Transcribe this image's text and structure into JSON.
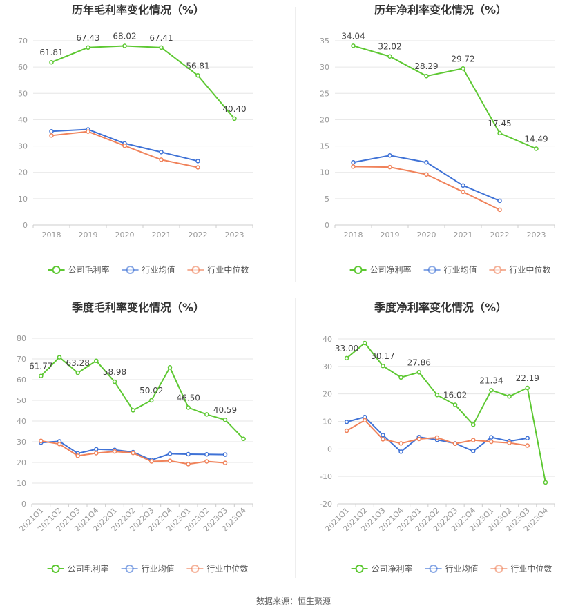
{
  "source": {
    "label": "数据来源：",
    "name": "恒生聚源"
  },
  "legend_labels": {
    "gross": "公司毛利率",
    "net": "公司净利率",
    "avg": "行业均值",
    "median": "行业中位数"
  },
  "colors": {
    "company": "#5dc832",
    "average": "#3f72d6",
    "median": "#f0825a",
    "grid": "#e6e6e6",
    "axis": "#999999"
  },
  "chart_data": [
    {
      "type": "line",
      "title": "历年毛利率变化情况（%）",
      "categories": [
        "2018",
        "2019",
        "2020",
        "2021",
        "2022",
        "2023"
      ],
      "ylim": [
        0,
        70
      ],
      "yticks": [
        "0",
        "10",
        "20",
        "30",
        "40",
        "50",
        "60",
        "70"
      ],
      "grid": true,
      "legend_position": "bottom",
      "series": [
        {
          "name": "公司毛利率",
          "values": [
            61.81,
            67.43,
            68.02,
            67.41,
            56.81,
            40.4
          ],
          "labels": [
            "61.81",
            "67.43",
            "68.02",
            "67.41",
            "56.81",
            "40.40"
          ]
        },
        {
          "name": "行业均值",
          "values": [
            35.6,
            36.3,
            31.0,
            27.7,
            24.3,
            null
          ]
        },
        {
          "name": "行业中位数",
          "values": [
            34.0,
            35.5,
            30.1,
            24.8,
            21.9,
            null
          ]
        }
      ]
    },
    {
      "type": "line",
      "title": "历年净利率变化情况（%）",
      "categories": [
        "2018",
        "2019",
        "2020",
        "2021",
        "2022",
        "2023"
      ],
      "ylim": [
        0,
        35
      ],
      "yticks": [
        "0",
        "5",
        "10",
        "15",
        "20",
        "25",
        "30",
        "35"
      ],
      "grid": true,
      "legend_position": "bottom",
      "series": [
        {
          "name": "公司净利率",
          "values": [
            34.04,
            32.02,
            28.29,
            29.72,
            17.45,
            14.49
          ],
          "labels": [
            "34.04",
            "32.02",
            "28.29",
            "29.72",
            "17.45",
            "14.49"
          ]
        },
        {
          "name": "行业均值",
          "values": [
            11.9,
            13.2,
            11.9,
            7.5,
            4.6,
            null
          ]
        },
        {
          "name": "行业中位数",
          "values": [
            11.1,
            11.0,
            9.6,
            6.3,
            2.9,
            null
          ]
        }
      ]
    },
    {
      "type": "line",
      "title": "季度毛利率变化情况（%）",
      "categories": [
        "2021Q1",
        "2021Q2",
        "2021Q3",
        "2021Q4",
        "2022Q1",
        "2022Q2",
        "2022Q3",
        "2022Q4",
        "2023Q1",
        "2023Q2",
        "2023Q3",
        "2023Q4"
      ],
      "ylim": [
        0,
        80
      ],
      "yticks": [
        "0",
        "10",
        "20",
        "30",
        "40",
        "50",
        "60",
        "70",
        "80"
      ],
      "grid": true,
      "legend_position": "bottom",
      "series": [
        {
          "name": "公司毛利率",
          "values": [
            61.77,
            70.8,
            63.28,
            69.1,
            58.98,
            45.2,
            50.02,
            65.9,
            46.5,
            43.2,
            40.59,
            31.4
          ],
          "labels": [
            "61.77",
            "",
            "63.28",
            "",
            "58.98",
            "",
            "50.02",
            "",
            "46.50",
            "",
            "40.59",
            ""
          ]
        },
        {
          "name": "行业均值",
          "values": [
            29.6,
            30.2,
            24.4,
            26.4,
            26.1,
            25.0,
            21.2,
            24.2,
            24.0,
            23.9,
            23.8,
            null
          ]
        },
        {
          "name": "行业中位数",
          "values": [
            30.4,
            28.9,
            23.2,
            24.5,
            25.3,
            24.6,
            20.5,
            20.8,
            19.2,
            20.5,
            19.8,
            null
          ]
        }
      ]
    },
    {
      "type": "line",
      "title": "季度净利率变化情况（%）",
      "categories": [
        "2021Q1",
        "2021Q2",
        "2021Q3",
        "2021Q4",
        "2022Q1",
        "2022Q2",
        "2022Q3",
        "2022Q4",
        "2023Q1",
        "2023Q2",
        "2023Q3",
        "2023Q4"
      ],
      "ylim": [
        -20,
        40
      ],
      "yticks": [
        "-20",
        "-10",
        "0",
        "10",
        "20",
        "30",
        "40"
      ],
      "grid": true,
      "legend_position": "bottom",
      "series": [
        {
          "name": "公司净利率",
          "values": [
            33.0,
            38.5,
            30.17,
            26.0,
            27.86,
            19.6,
            16.02,
            8.8,
            21.34,
            19.1,
            22.19,
            -12.2
          ],
          "labels": [
            "33.00",
            "",
            "30.17",
            "",
            "27.86",
            "",
            "16.02",
            "",
            "21.34",
            "",
            "22.19",
            ""
          ]
        },
        {
          "name": "行业均值",
          "values": [
            9.8,
            11.6,
            5.0,
            -1.0,
            4.3,
            3.3,
            2.0,
            -0.8,
            4.2,
            2.8,
            3.9,
            null
          ]
        },
        {
          "name": "行业中位数",
          "values": [
            6.6,
            10.4,
            3.5,
            2.0,
            3.6,
            4.1,
            1.9,
            3.2,
            2.6,
            2.2,
            1.2,
            null
          ]
        }
      ]
    }
  ]
}
